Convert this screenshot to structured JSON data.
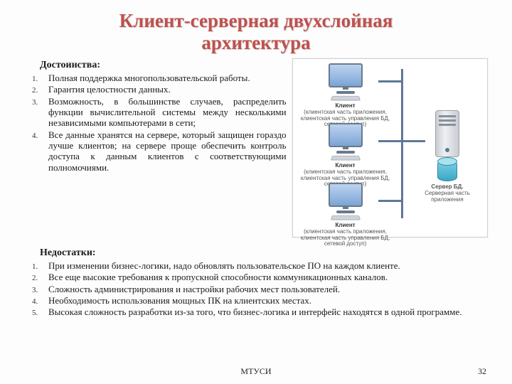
{
  "title_line1": "Клиент-серверная двухслойная",
  "title_line2": "архитектура",
  "advantages": {
    "heading": "Достоинства:",
    "items": [
      "Полная поддержка многопользовательской работы.",
      "Гарантия целостности данных.",
      "Возможность, в большинстве случаев, распределить функции вычислительной системы между несколькими независимыми компьютерами в сети;",
      "Все данные хранятся на сервере, который защищен гораздо лучше клиентов; на сервере проще обеспечить контроль доступа к данным клиентов с соответствующими полномочиями."
    ]
  },
  "disadvantages": {
    "heading": "Недостатки:",
    "items": [
      "При изменении бизнес-логики, надо обновлять пользовательское ПО на каждом клиенте.",
      "Все еще высокие требования к пропускной способности коммуникационных каналов.",
      "Сложность администрирования и настройки рабочих мест пользователей.",
      "Необходимость использования мощных ПК на клиентских местах.",
      "Высокая сложность разработки из-за того, что бизнес-логика и интерфейс находятся в одной программе."
    ]
  },
  "diagram": {
    "client_title": "Клиент",
    "client_sub": "(клиентская часть приложения, клиентская часть управления БД, сетевой доступ)",
    "server_title": "Сервер БД.",
    "server_sub": "Серверная часть приложения"
  },
  "footer": {
    "org": "МТУСИ",
    "page": "32"
  },
  "colors": {
    "title": "#c0504d",
    "text": "#1a1a1a",
    "diagram_border": "#cfcfcf",
    "bus": "#5f7896"
  }
}
